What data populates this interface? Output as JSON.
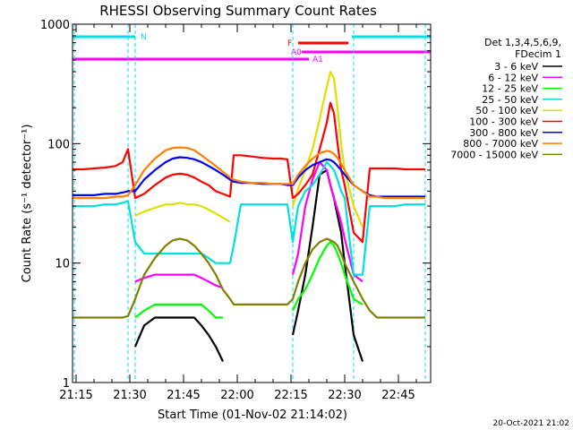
{
  "chart_data": {
    "type": "line",
    "title": "RHESSI Observing Summary Count Rates",
    "xlabel": "Start Time (01-Nov-02 21:14:02)",
    "ylabel": "Count Rate (s⁻¹ detector⁻¹)",
    "y_scale": "log",
    "ylim": [
      1,
      1000
    ],
    "xlim_minutes": [
      0,
      100
    ],
    "x_ticks": [
      {
        "label": "21:15",
        "minute": 1
      },
      {
        "label": "21:30",
        "minute": 16
      },
      {
        "label": "21:45",
        "minute": 31
      },
      {
        "label": "22:00",
        "minute": 46
      },
      {
        "label": "22:15",
        "minute": 61
      },
      {
        "label": "22:30",
        "minute": 76
      },
      {
        "label": "22:45",
        "minute": 91
      }
    ],
    "y_ticks": [
      {
        "label": "1",
        "value": 1
      },
      {
        "label": "10",
        "value": 10
      },
      {
        "label": "100",
        "value": 100
      },
      {
        "label": "1000",
        "value": 1000
      }
    ],
    "legend_header": [
      "Det 1,3,4,5,6,9,",
      "FDecim 1"
    ],
    "legend_position": "right",
    "flags": [
      {
        "label": "N",
        "color": "#00e0e0",
        "segments": [
          [
            0,
            17.5
          ],
          [
            78,
            100
          ]
        ]
      },
      {
        "label": "F",
        "color": "#ff0000",
        "segments": [
          [
            63,
            77
          ]
        ]
      },
      {
        "label": "A0",
        "color": "#ff00ff",
        "segments": [
          [
            64,
            100
          ]
        ]
      },
      {
        "label": "A1",
        "color": "#ff00ff",
        "segments": [
          [
            0,
            66
          ]
        ]
      }
    ],
    "vlines_minutes": [
      0.5,
      15.5,
      17.5,
      61.5,
      78.5,
      98.5
    ],
    "x_minutes": [
      0,
      3,
      6,
      9,
      12,
      14,
      15.5,
      17.5,
      20,
      23,
      26,
      28,
      30,
      32,
      34,
      36,
      38,
      40,
      42,
      44,
      45,
      47,
      50,
      53,
      56,
      58,
      60,
      61.5,
      63,
      65,
      67,
      69,
      71,
      72,
      73,
      74,
      75,
      76,
      78.5,
      81,
      83,
      85,
      87,
      90,
      93,
      96,
      98.5
    ],
    "series": [
      {
        "name": "3 - 6 keV",
        "color": "#000000",
        "values": [
          null,
          null,
          null,
          null,
          null,
          null,
          null,
          2,
          3,
          3.5,
          3.5,
          3.5,
          3.5,
          3.5,
          3.5,
          3,
          2.5,
          2,
          1.5,
          null,
          null,
          null,
          null,
          null,
          null,
          null,
          null,
          2.5,
          4,
          8,
          20,
          55,
          60,
          45,
          35,
          25,
          18,
          10,
          2.5,
          1.5,
          null,
          null,
          null,
          null,
          null,
          null,
          null
        ]
      },
      {
        "name": "6 - 12 keV",
        "color": "#ff00ff",
        "values": [
          null,
          null,
          null,
          null,
          null,
          null,
          null,
          7,
          7.5,
          8,
          8,
          8,
          8,
          8,
          8,
          7.5,
          7,
          6.5,
          6.2,
          null,
          null,
          null,
          null,
          null,
          null,
          null,
          null,
          8,
          12,
          30,
          50,
          70,
          60,
          45,
          35,
          28,
          22,
          16,
          8,
          7,
          null,
          null,
          null,
          null,
          null,
          null,
          null
        ]
      },
      {
        "name": "12 - 25 keV",
        "color": "#00ff00",
        "values": [
          null,
          null,
          null,
          null,
          null,
          null,
          null,
          3.5,
          4,
          4.5,
          4.5,
          4.5,
          4.5,
          4.5,
          4.5,
          4.5,
          4,
          3.5,
          3.5,
          null,
          null,
          null,
          null,
          null,
          null,
          null,
          null,
          4,
          5,
          6,
          8,
          11,
          14,
          15,
          14,
          12,
          10,
          8,
          5,
          4.5,
          null,
          null,
          null,
          null,
          null,
          null,
          null
        ]
      },
      {
        "name": "25 - 50 keV",
        "color": "#00e0e0",
        "values": [
          30,
          30,
          30,
          31,
          31,
          32,
          33,
          15,
          12,
          12,
          12,
          12,
          12,
          12,
          12,
          12,
          11,
          10,
          10,
          10,
          14,
          31,
          31,
          31,
          31,
          31,
          31,
          15,
          30,
          40,
          45,
          55,
          70,
          65,
          60,
          50,
          40,
          35,
          8,
          8,
          30,
          30,
          30,
          30,
          31,
          31,
          31
        ]
      },
      {
        "name": "50 - 100 keV",
        "color": "#e0e000",
        "values": [
          null,
          null,
          null,
          null,
          null,
          null,
          null,
          25,
          27,
          29,
          31,
          31,
          32,
          31,
          31,
          30,
          28,
          26,
          24,
          22,
          null,
          null,
          null,
          null,
          null,
          null,
          null,
          30,
          42,
          60,
          90,
          160,
          300,
          400,
          350,
          200,
          100,
          60,
          30,
          20,
          null,
          null,
          null,
          null,
          null,
          null,
          null
        ]
      },
      {
        "name": "100 - 300 keV",
        "color": "#ff0000",
        "values": [
          61,
          61,
          62,
          63,
          65,
          70,
          90,
          35,
          38,
          45,
          52,
          55,
          56,
          55,
          52,
          48,
          45,
          40,
          38,
          36,
          80,
          80,
          78,
          76,
          75,
          75,
          74,
          35,
          38,
          45,
          55,
          90,
          150,
          220,
          180,
          100,
          60,
          45,
          18,
          15,
          62,
          62,
          62,
          62,
          61,
          61,
          61
        ]
      },
      {
        "name": "300 - 800 keV",
        "color": "#0000ff",
        "values": [
          37,
          37,
          37,
          38,
          38,
          39,
          40,
          40,
          50,
          60,
          70,
          75,
          77,
          76,
          74,
          70,
          65,
          60,
          55,
          50,
          48,
          47,
          47,
          46,
          46,
          46,
          45,
          45,
          52,
          60,
          66,
          70,
          74,
          73,
          70,
          65,
          60,
          55,
          45,
          40,
          37,
          36,
          36,
          36,
          36,
          36,
          36
        ]
      },
      {
        "name": "800 - 7000 keV",
        "color": "#ff8000",
        "values": [
          35,
          35,
          35,
          35,
          36,
          36,
          37,
          45,
          60,
          75,
          88,
          92,
          93,
          92,
          88,
          80,
          72,
          65,
          58,
          52,
          50,
          48,
          47,
          47,
          46,
          46,
          46,
          46,
          55,
          65,
          75,
          83,
          87,
          86,
          82,
          76,
          68,
          60,
          45,
          40,
          36,
          36,
          35,
          35,
          35,
          35,
          35
        ]
      },
      {
        "name": "7000 - 15000 keV",
        "color": "#808000",
        "values": [
          3.5,
          3.5,
          3.5,
          3.5,
          3.5,
          3.5,
          3.6,
          5,
          8,
          11,
          14,
          15.5,
          16,
          15.5,
          14,
          12,
          10,
          8,
          6,
          5,
          4.5,
          4.5,
          4.5,
          4.5,
          4.5,
          4.5,
          4.5,
          5,
          7,
          10,
          13,
          15,
          16,
          15.5,
          15,
          14,
          12,
          10,
          7,
          5,
          4,
          3.5,
          3.5,
          3.5,
          3.5,
          3.5,
          3.5
        ]
      }
    ]
  },
  "footer_date": "20-Oct-2021 21:02"
}
